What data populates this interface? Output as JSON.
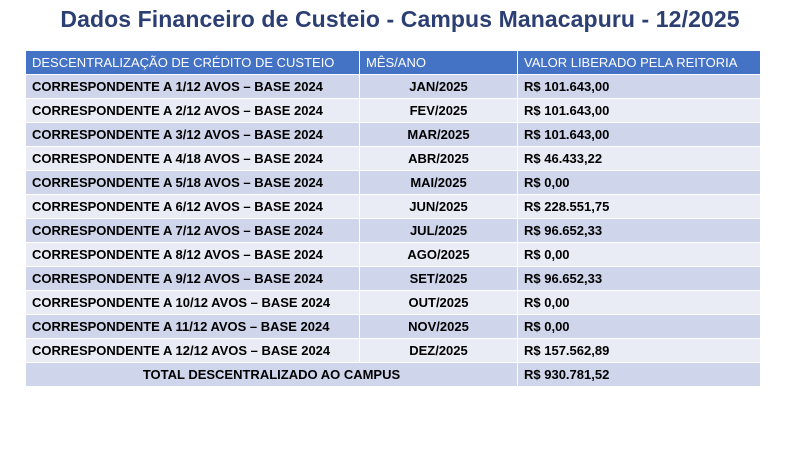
{
  "title": "Dados Financeiro de Custeio - Campus Manacapuru - 12/2025",
  "table": {
    "headers": [
      "DESCENTRALIZAÇÃO DE CRÉDITO DE CUSTEIO",
      "MÊS/ANO",
      "VALOR LIBERADO PELA REITORIA"
    ],
    "rows": [
      [
        "CORRESPONDENTE A 1/12 AVOS – BASE 2024",
        "JAN/2025",
        "R$ 101.643,00"
      ],
      [
        "CORRESPONDENTE A 2/12 AVOS – BASE 2024",
        "FEV/2025",
        "R$ 101.643,00"
      ],
      [
        "CORRESPONDENTE A 3/12 AVOS – BASE 2024",
        "MAR/2025",
        "R$ 101.643,00"
      ],
      [
        "CORRESPONDENTE A 4/18 AVOS – BASE 2024",
        "ABR/2025",
        "R$ 46.433,22"
      ],
      [
        "CORRESPONDENTE A 5/18 AVOS – BASE 2024",
        "MAI/2025",
        "R$ 0,00"
      ],
      [
        "CORRESPONDENTE A 6/12 AVOS – BASE 2024",
        "JUN/2025",
        "R$ 228.551,75"
      ],
      [
        "CORRESPONDENTE A 7/12 AVOS – BASE 2024",
        "JUL/2025",
        "R$ 96.652,33"
      ],
      [
        "CORRESPONDENTE A 8/12 AVOS – BASE 2024",
        "AGO/2025",
        "R$ 0,00"
      ],
      [
        "CORRESPONDENTE A 9/12 AVOS – BASE 2024",
        "SET/2025",
        "R$ 96.652,33"
      ],
      [
        "CORRESPONDENTE A 10/12 AVOS – BASE 2024",
        "OUT/2025",
        "R$ 0,00"
      ],
      [
        "CORRESPONDENTE A 11/12 AVOS – BASE 2024",
        "NOV/2025",
        "R$ 0,00"
      ],
      [
        "CORRESPONDENTE A 12/12 AVOS – BASE 2024",
        "DEZ/2025",
        "R$ 157.562,89"
      ]
    ],
    "total": {
      "label": "TOTAL DESCENTRALIZADO AO CAMPUS",
      "value": "R$ 930.781,52"
    }
  },
  "colors": {
    "title": "#2c3f73",
    "header_bg": "#4472c4",
    "row_dark": "#cfd5ea",
    "row_light": "#e9ebf5"
  }
}
